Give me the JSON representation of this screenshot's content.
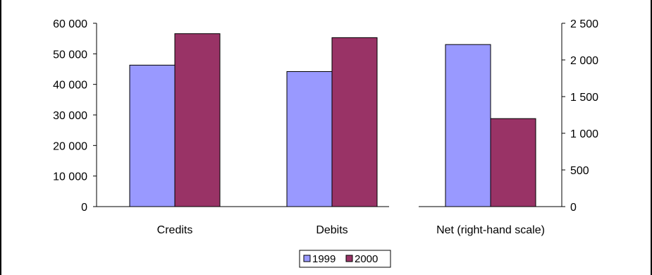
{
  "chart_data": {
    "type": "bar",
    "title": "",
    "xlabel": "",
    "ylabel": "",
    "categories": [
      "Credits",
      "Debits",
      "Net (right-hand scale)"
    ],
    "series": [
      {
        "name": "1999",
        "color": "#9999ff",
        "values": [
          46300,
          44200,
          2210
        ]
      },
      {
        "name": "2000",
        "color": "#993366",
        "values": [
          56600,
          55300,
          1200
        ]
      }
    ],
    "left_axis": {
      "ylim": [
        0,
        60000
      ],
      "ticks": [
        0,
        10000,
        20000,
        30000,
        40000,
        50000,
        60000
      ],
      "tick_labels": [
        "0",
        "10 000",
        "20 000",
        "30 000",
        "40 000",
        "50 000",
        "60 000"
      ],
      "applies_to": [
        "Credits",
        "Debits"
      ]
    },
    "right_axis": {
      "ylim": [
        0,
        2500
      ],
      "ticks": [
        0,
        500,
        1000,
        1500,
        2000,
        2500
      ],
      "tick_labels": [
        "0",
        "500",
        "1 000",
        "1 500",
        "2 000",
        "2 500"
      ],
      "applies_to": [
        "Net (right-hand scale)"
      ]
    },
    "grid": false,
    "legend": {
      "position": "bottom",
      "entries": [
        "1999",
        "2000"
      ]
    }
  }
}
